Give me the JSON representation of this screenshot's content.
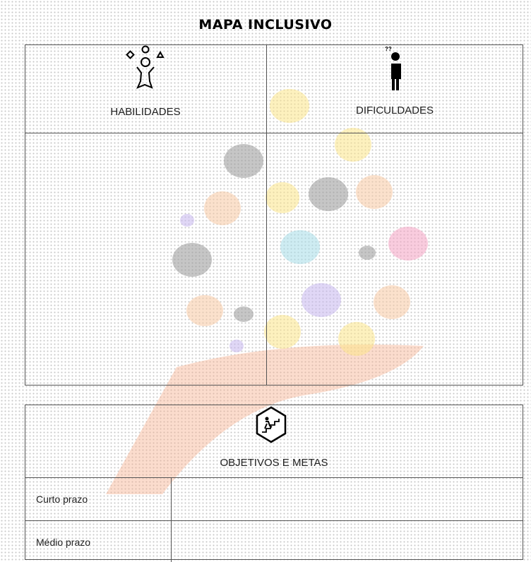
{
  "title": "MAPA INCLUSIVO",
  "map": {
    "columns": [
      "HABILIDADES",
      "DIFICULDADES"
    ]
  },
  "goals": {
    "title": "OBJETIVOS E METAS",
    "rows": [
      "Curto prazo",
      "Médio prazo"
    ]
  }
}
